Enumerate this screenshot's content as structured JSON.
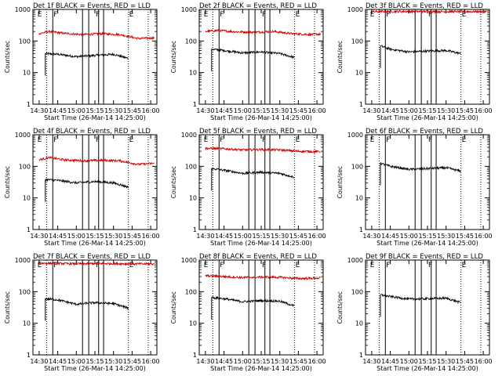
{
  "figure": {
    "ylabel": "Counts/sec",
    "xlabel": "Start Time (26-Mar-14 14:25:00)",
    "x_tick_labels": [
      "14:30",
      "14:45",
      "15:00",
      "15:15",
      "15:30",
      "15:45",
      "16:00"
    ],
    "y_tick_labels": [
      "1",
      "10",
      "100",
      "1000"
    ],
    "flag_labels": [
      "E",
      "F",
      "F",
      "E"
    ]
  },
  "chart_data": [
    {
      "type": "line",
      "title": "Det 1f BLACK = Events, RED = LLD",
      "scale": "log",
      "ylim": [
        1,
        1000
      ],
      "xlim": [
        "14:25",
        "16:05"
      ],
      "series": [
        {
          "name": "Events",
          "color": "#000000",
          "values": [
            {
              "x": "14:35",
              "y": 40
            },
            {
              "x": "14:45",
              "y": 38
            },
            {
              "x": "15:00",
              "y": 32
            },
            {
              "x": "15:15",
              "y": 35
            },
            {
              "x": "15:30",
              "y": 38
            },
            {
              "x": "15:42",
              "y": 28
            }
          ]
        },
        {
          "name": "LLD",
          "color": "#cc0000",
          "values": [
            {
              "x": "14:30",
              "y": 170
            },
            {
              "x": "14:38",
              "y": 200
            },
            {
              "x": "14:50",
              "y": 175
            },
            {
              "x": "15:05",
              "y": 160
            },
            {
              "x": "15:20",
              "y": 170
            },
            {
              "x": "15:35",
              "y": 160
            },
            {
              "x": "15:50",
              "y": 120
            },
            {
              "x": "16:03",
              "y": 125
            }
          ]
        }
      ]
    },
    {
      "type": "line",
      "title": "Det 2f BLACK = Events, RED = LLD",
      "scale": "log",
      "ylim": [
        1,
        1000
      ],
      "xlim": [
        "14:25",
        "16:05"
      ],
      "series": [
        {
          "name": "Events",
          "color": "#000000",
          "values": [
            {
              "x": "14:35",
              "y": 55
            },
            {
              "x": "14:45",
              "y": 50
            },
            {
              "x": "15:00",
              "y": 42
            },
            {
              "x": "15:15",
              "y": 45
            },
            {
              "x": "15:30",
              "y": 40
            },
            {
              "x": "15:42",
              "y": 30
            }
          ]
        },
        {
          "name": "LLD",
          "color": "#cc0000",
          "values": [
            {
              "x": "14:30",
              "y": 200
            },
            {
              "x": "14:40",
              "y": 215
            },
            {
              "x": "14:55",
              "y": 195
            },
            {
              "x": "15:10",
              "y": 190
            },
            {
              "x": "15:25",
              "y": 200
            },
            {
              "x": "15:40",
              "y": 170
            },
            {
              "x": "15:55",
              "y": 160
            },
            {
              "x": "16:03",
              "y": 165
            }
          ]
        }
      ]
    },
    {
      "type": "line",
      "title": "Det 3f BLACK = Events, RED = LLD",
      "scale": "log",
      "ylim": [
        1,
        1000
      ],
      "xlim": [
        "14:25",
        "16:05"
      ],
      "series": [
        {
          "name": "Events",
          "color": "#000000",
          "values": [
            {
              "x": "14:37",
              "y": 70
            },
            {
              "x": "14:45",
              "y": 55
            },
            {
              "x": "15:00",
              "y": 45
            },
            {
              "x": "15:15",
              "y": 48
            },
            {
              "x": "15:30",
              "y": 50
            },
            {
              "x": "15:42",
              "y": 40
            }
          ]
        },
        {
          "name": "LLD",
          "color": "#cc0000",
          "values": [
            {
              "x": "14:30",
              "y": 850
            },
            {
              "x": "15:00",
              "y": 860
            },
            {
              "x": "15:30",
              "y": 850
            },
            {
              "x": "16:03",
              "y": 850
            }
          ]
        }
      ]
    },
    {
      "type": "line",
      "title": "Det 4f BLACK = Events, RED = LLD",
      "scale": "log",
      "ylim": [
        1,
        1000
      ],
      "xlim": [
        "14:25",
        "16:05"
      ],
      "series": [
        {
          "name": "Events",
          "color": "#000000",
          "values": [
            {
              "x": "14:35",
              "y": 38
            },
            {
              "x": "14:45",
              "y": 36
            },
            {
              "x": "15:00",
              "y": 30
            },
            {
              "x": "15:15",
              "y": 33
            },
            {
              "x": "15:30",
              "y": 30
            },
            {
              "x": "15:42",
              "y": 22
            }
          ]
        },
        {
          "name": "LLD",
          "color": "#cc0000",
          "values": [
            {
              "x": "14:30",
              "y": 160
            },
            {
              "x": "14:38",
              "y": 190
            },
            {
              "x": "14:50",
              "y": 160
            },
            {
              "x": "15:05",
              "y": 150
            },
            {
              "x": "15:20",
              "y": 155
            },
            {
              "x": "15:35",
              "y": 150
            },
            {
              "x": "15:50",
              "y": 115
            },
            {
              "x": "16:03",
              "y": 125
            }
          ]
        }
      ]
    },
    {
      "type": "line",
      "title": "Det 5f BLACK = Events, RED = LLD",
      "scale": "log",
      "ylim": [
        1,
        1000
      ],
      "xlim": [
        "14:25",
        "16:05"
      ],
      "series": [
        {
          "name": "Events",
          "color": "#000000",
          "values": [
            {
              "x": "14:35",
              "y": 85
            },
            {
              "x": "14:45",
              "y": 75
            },
            {
              "x": "15:00",
              "y": 60
            },
            {
              "x": "15:15",
              "y": 65
            },
            {
              "x": "15:30",
              "y": 60
            },
            {
              "x": "15:42",
              "y": 45
            }
          ]
        },
        {
          "name": "LLD",
          "color": "#cc0000",
          "values": [
            {
              "x": "14:30",
              "y": 370
            },
            {
              "x": "14:45",
              "y": 360
            },
            {
              "x": "15:00",
              "y": 330
            },
            {
              "x": "15:15",
              "y": 340
            },
            {
              "x": "15:30",
              "y": 330
            },
            {
              "x": "15:45",
              "y": 300
            },
            {
              "x": "16:03",
              "y": 290
            }
          ]
        }
      ]
    },
    {
      "type": "line",
      "title": "Det 6f BLACK = Events, RED = LLD",
      "scale": "log",
      "ylim": [
        1,
        1000
      ],
      "xlim": [
        "14:25",
        "16:05"
      ],
      "series": [
        {
          "name": "Events",
          "color": "#000000",
          "values": [
            {
              "x": "14:37",
              "y": 125
            },
            {
              "x": "14:45",
              "y": 100
            },
            {
              "x": "15:00",
              "y": 80
            },
            {
              "x": "15:15",
              "y": 85
            },
            {
              "x": "15:30",
              "y": 90
            },
            {
              "x": "15:42",
              "y": 70
            }
          ]
        }
      ]
    },
    {
      "type": "line",
      "title": "Det 7f BLACK = Events, RED = LLD",
      "scale": "log",
      "ylim": [
        1,
        1000
      ],
      "xlim": [
        "14:25",
        "16:05"
      ],
      "series": [
        {
          "name": "Events",
          "color": "#000000",
          "values": [
            {
              "x": "14:35",
              "y": 60
            },
            {
              "x": "14:45",
              "y": 55
            },
            {
              "x": "15:00",
              "y": 40
            },
            {
              "x": "15:15",
              "y": 45
            },
            {
              "x": "15:30",
              "y": 42
            },
            {
              "x": "15:42",
              "y": 30
            }
          ]
        },
        {
          "name": "LLD",
          "color": "#cc0000",
          "values": [
            {
              "x": "14:30",
              "y": 800
            },
            {
              "x": "14:45",
              "y": 780
            },
            {
              "x": "15:00",
              "y": 760
            },
            {
              "x": "15:15",
              "y": 780
            },
            {
              "x": "15:30",
              "y": 770
            },
            {
              "x": "15:45",
              "y": 760
            },
            {
              "x": "16:03",
              "y": 750
            }
          ]
        }
      ]
    },
    {
      "type": "line",
      "title": "Det 8f BLACK = Events, RED = LLD",
      "scale": "log",
      "ylim": [
        1,
        1000
      ],
      "xlim": [
        "14:25",
        "16:05"
      ],
      "series": [
        {
          "name": "Events",
          "color": "#000000",
          "values": [
            {
              "x": "14:35",
              "y": 65
            },
            {
              "x": "14:45",
              "y": 60
            },
            {
              "x": "15:00",
              "y": 48
            },
            {
              "x": "15:15",
              "y": 52
            },
            {
              "x": "15:30",
              "y": 50
            },
            {
              "x": "15:42",
              "y": 35
            }
          ]
        },
        {
          "name": "LLD",
          "color": "#cc0000",
          "values": [
            {
              "x": "14:30",
              "y": 320
            },
            {
              "x": "14:45",
              "y": 300
            },
            {
              "x": "15:00",
              "y": 280
            },
            {
              "x": "15:15",
              "y": 290
            },
            {
              "x": "15:30",
              "y": 285
            },
            {
              "x": "15:45",
              "y": 260
            },
            {
              "x": "16:03",
              "y": 270
            }
          ]
        }
      ]
    },
    {
      "type": "line",
      "title": "Det 9f BLACK = Events, RED = LLD",
      "scale": "log",
      "ylim": [
        1,
        1000
      ],
      "xlim": [
        "14:25",
        "16:05"
      ],
      "series": [
        {
          "name": "Events",
          "color": "#000000",
          "values": [
            {
              "x": "14:37",
              "y": 80
            },
            {
              "x": "14:45",
              "y": 70
            },
            {
              "x": "15:00",
              "y": 58
            },
            {
              "x": "15:15",
              "y": 60
            },
            {
              "x": "15:30",
              "y": 62
            },
            {
              "x": "15:42",
              "y": 45
            }
          ]
        }
      ]
    }
  ]
}
